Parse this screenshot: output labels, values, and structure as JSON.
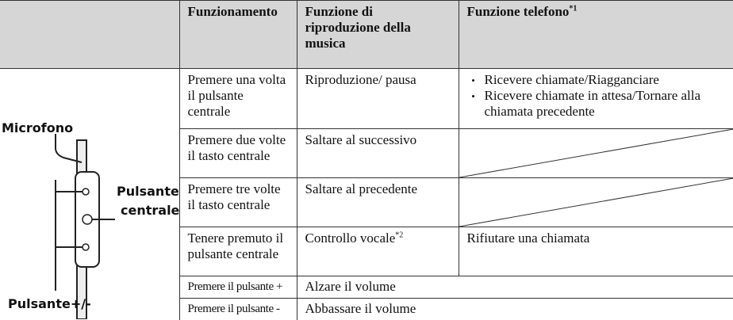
{
  "table": {
    "header": {
      "operation": "Funzionamento",
      "music": "Funzione di riproduzione della musica",
      "phone": "Funzione telefono",
      "phone_note": "*1"
    },
    "illustration": {
      "microphone": "Microfono",
      "center_button": [
        "Pulsante",
        "centrale"
      ],
      "volume_button": "Pulsante+/-"
    },
    "rows": [
      {
        "operation": "Premere una volta il pulsante centrale",
        "music": "Riproduzione/ pausa",
        "phone": [
          "Ricevere chiamate/Riagganciare",
          "Ricevere chiamate in attesa/Tornare alla chiamata precedente"
        ]
      },
      {
        "operation": "Premere due volte il tasto centrale",
        "music": "Saltare al successivo"
      },
      {
        "operation": "Premere tre volte il tasto centrale",
        "music": "Saltare al precedente"
      },
      {
        "operation": "Tenere premuto il pulsante centrale",
        "music": "Controllo vocale",
        "music_note": "*2",
        "phone": [
          "Rifiutare una chiamata"
        ]
      },
      {
        "operation": "Premere il pulsante +",
        "music": "Alzare il volume",
        "merged": true
      },
      {
        "operation": "Premere il pulsante -",
        "music": "Abbassare il volume",
        "merged": true
      }
    ]
  }
}
